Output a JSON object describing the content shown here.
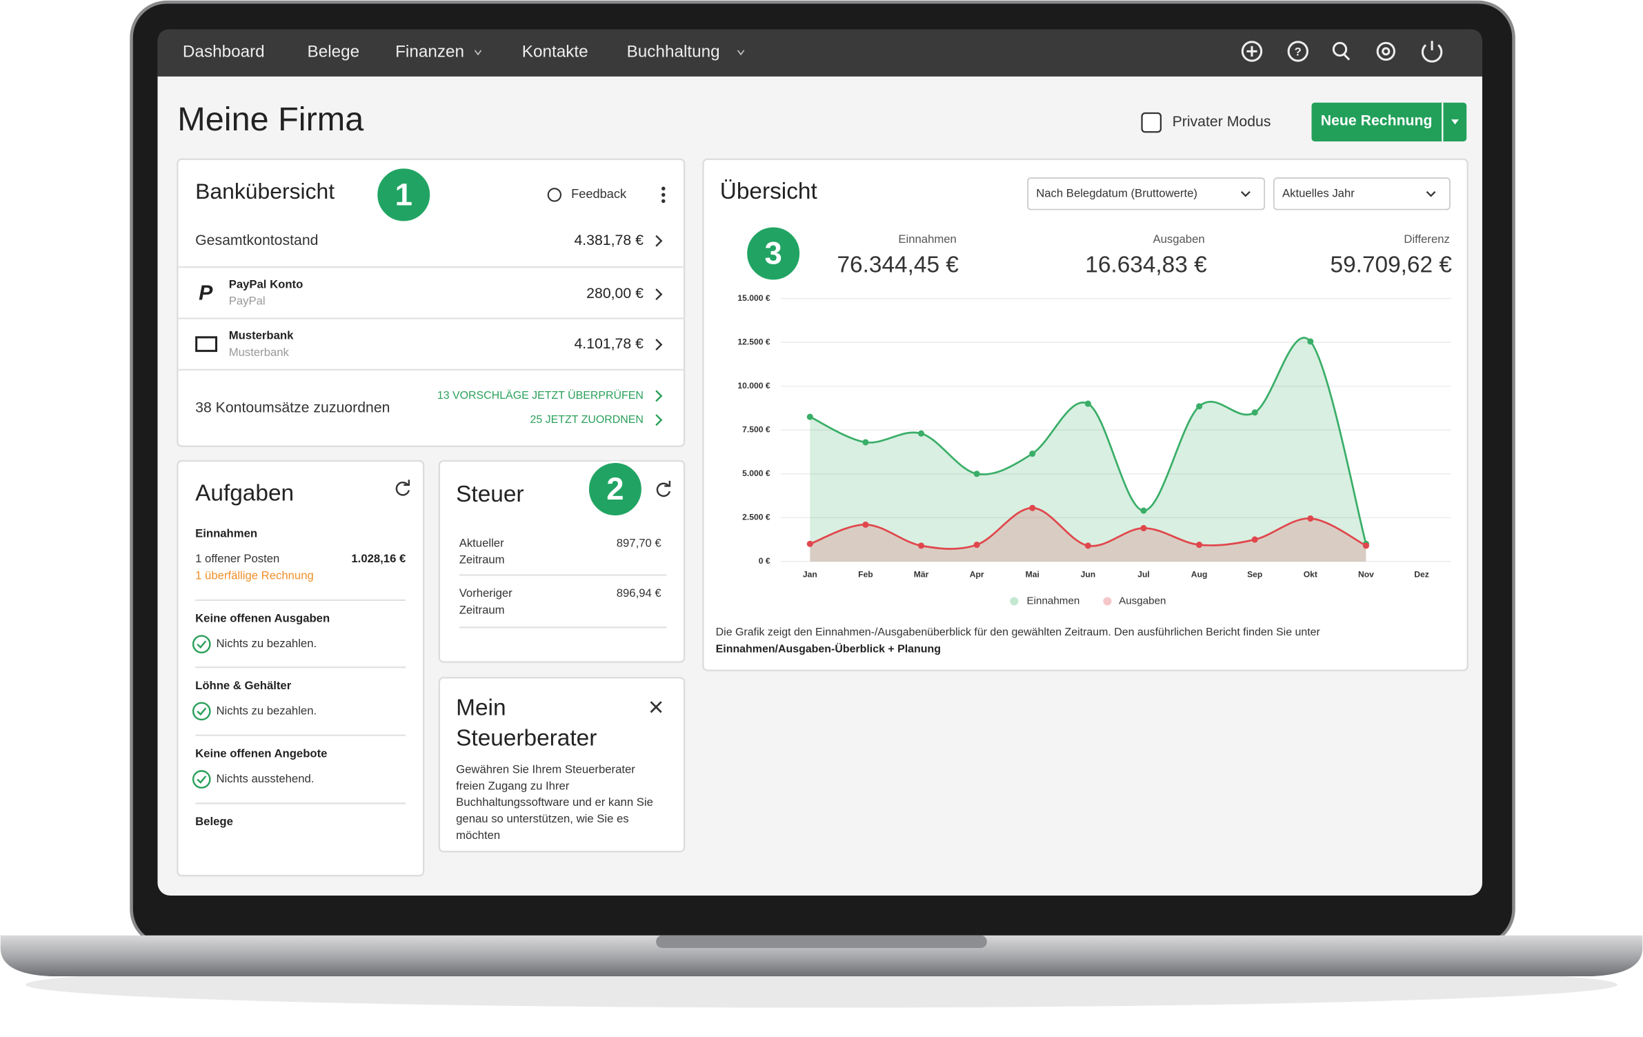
{
  "nav": {
    "items": [
      "Dashboard",
      "Belege",
      "Finanzen",
      "Kontakte",
      "Buchhaltung"
    ]
  },
  "header": {
    "title": "Meine Firma",
    "private_mode": "Privater Modus",
    "new_invoice": "Neue Rechnung"
  },
  "bank": {
    "title": "Bankübersicht",
    "badge": "1",
    "feedback": "Feedback",
    "total_label": "Gesamtkontostand",
    "total": "4.381,78 €",
    "accounts": [
      {
        "name": "PayPal Konto",
        "sub": "PayPal",
        "amount": "280,00 €"
      },
      {
        "name": "Musterbank",
        "sub": "Musterbank",
        "amount": "4.101,78 €"
      }
    ],
    "unassigned": "38 Kontoumsätze zuzuordnen",
    "links": [
      "13 VORSCHLÄGE JETZT ÜBERPRÜFEN",
      "25 JETZT ZUORDNEN"
    ]
  },
  "tasks": {
    "title": "Aufgaben",
    "income": {
      "title": "Einnahmen",
      "open": "1 offener Posten",
      "amount": "1.028,16 €",
      "overdue": "1 überfällige Rechnung"
    },
    "checks": [
      {
        "title": "Keine offenen Ausgaben",
        "status": "Nichts zu bezahlen."
      },
      {
        "title": "Löhne & Gehälter",
        "status": "Nichts zu bezahlen."
      },
      {
        "title": "Keine offenen Angebote",
        "status": "Nichts ausstehend."
      }
    ],
    "receipts": "Belege"
  },
  "tax": {
    "title": "Steuer",
    "badge": "2",
    "rows": [
      {
        "label": [
          "Aktueller",
          "Zeitraum"
        ],
        "value": "897,70 €"
      },
      {
        "label": [
          "Vorheriger",
          "Zeitraum"
        ],
        "value": "896,94 €"
      }
    ]
  },
  "advisor": {
    "title": [
      "Mein",
      "Steuerberater"
    ],
    "text": [
      "Gewähren Sie Ihrem Steuerberater",
      "freien Zugang zu Ihrer",
      "Buchhaltungssoftware und er kann Sie",
      "genau so unterstützen, wie Sie es",
      "möchten"
    ]
  },
  "overview": {
    "title": "Übersicht",
    "badge": "3",
    "filters": [
      "Nach Belegdatum (Bruttowerte)",
      "Aktuelles Jahr"
    ],
    "kpis": [
      {
        "label": "Einnahmen",
        "value": "76.344,45 €"
      },
      {
        "label": "Ausgaben",
        "value": "16.634,83 €"
      },
      {
        "label": "Differenz",
        "value": "59.709,62 €"
      }
    ],
    "note": "Die Grafik zeigt den Einnahmen-/Ausgabenüberblick für den gewählten Zeitraum. Den ausführlichen Bericht finden Sie unter",
    "link": "Einnahmen/Ausgaben-Überblick + Planung"
  },
  "chart_data": {
    "type": "area",
    "categories": [
      "Jan",
      "Feb",
      "Mär",
      "Apr",
      "Mai",
      "Jun",
      "Jul",
      "Aug",
      "Sep",
      "Okt",
      "Nov",
      "Dez"
    ],
    "series": [
      {
        "name": "Einnahmen",
        "color": "#3aae68",
        "values": [
          8250,
          6800,
          7300,
          5000,
          6150,
          9000,
          2900,
          8850,
          8500,
          12550,
          1000,
          null
        ]
      },
      {
        "name": "Ausgaben",
        "color": "#e0474c",
        "values": [
          1000,
          2100,
          900,
          950,
          3050,
          900,
          1900,
          950,
          1250,
          2450,
          900,
          null
        ]
      }
    ],
    "ylim": [
      0,
      15000
    ],
    "yticks": [
      {
        "value": 0,
        "label": "0 €"
      },
      {
        "value": 2500,
        "label": "2.500 €"
      },
      {
        "value": 5000,
        "label": "5.000 €"
      },
      {
        "value": 7500,
        "label": "7.500 €"
      },
      {
        "value": 10000,
        "label": "10.000 €"
      },
      {
        "value": 12500,
        "label": "12.500 €"
      },
      {
        "value": 15000,
        "label": "15.000 €"
      }
    ],
    "grid": true
  }
}
